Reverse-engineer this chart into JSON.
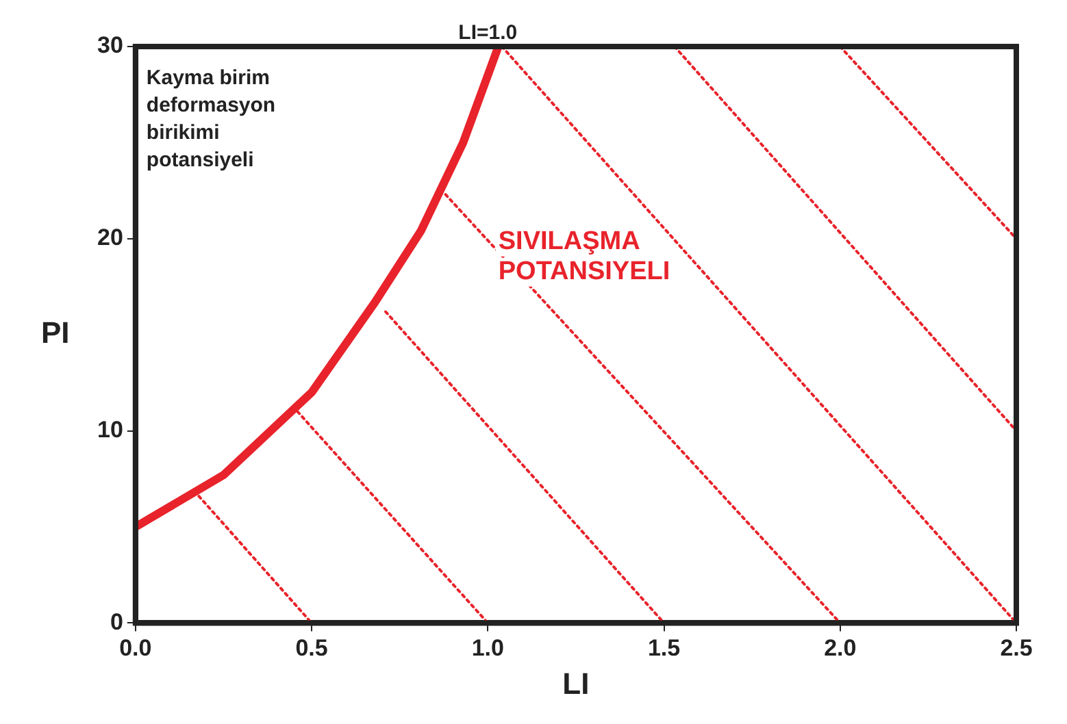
{
  "chart_data": {
    "type": "line",
    "xlabel": "LI",
    "ylabel": "PI",
    "xlim": [
      0,
      2.5
    ],
    "ylim": [
      0,
      30
    ],
    "xticks": [
      {
        "value": 0,
        "label": "0.0"
      },
      0.5,
      {
        "value": 1,
        "label": "1.0"
      },
      1.5,
      {
        "value": 2,
        "label": "2.0"
      },
      2.5
    ],
    "yticks": [
      0,
      10,
      20,
      30
    ],
    "grid": false,
    "legend": false,
    "marker": "none",
    "series": [
      {
        "color": "#e8232b",
        "line_style": "solid",
        "x": [
          0,
          0.25,
          0.5,
          0.68,
          0.81,
          0.93,
          1.03
        ],
        "values": [
          5,
          7.7,
          12,
          16.7,
          20.4,
          25,
          30
        ]
      },
      {
        "color": "#e8232b",
        "line_style": "dotted",
        "x": [
          0.18,
          0.5
        ],
        "values": [
          6.6,
          0
        ]
      },
      {
        "color": "#e8232b",
        "line_style": "dotted",
        "x": [
          0.46,
          1.0
        ],
        "values": [
          11,
          0
        ]
      },
      {
        "color": "#e8232b",
        "line_style": "dotted",
        "x": [
          0.71,
          1.5
        ],
        "values": [
          16.2,
          0
        ]
      },
      {
        "color": "#e8232b",
        "line_style": "dotted",
        "x": [
          0.88,
          2.0
        ],
        "values": [
          22.3,
          0
        ]
      },
      {
        "color": "#e8232b",
        "line_style": "dotted",
        "x": [
          1.04,
          2.5
        ],
        "values": [
          30,
          0
        ]
      },
      {
        "color": "#e8232b",
        "line_style": "dotted",
        "x": [
          1.53,
          2.5
        ],
        "values": [
          30,
          10
        ]
      },
      {
        "color": "#e8232b",
        "line_style": "dotted",
        "x": [
          2.0,
          2.5
        ],
        "values": [
          30,
          20
        ]
      }
    ],
    "annotations": [
      {
        "text": "LI=1.0",
        "x": 1.0,
        "y": 30
      },
      "Kayma birim deformasyon birikimi potansiyeli",
      "SIVILAŞMA POTANSIYELI"
    ]
  }
}
